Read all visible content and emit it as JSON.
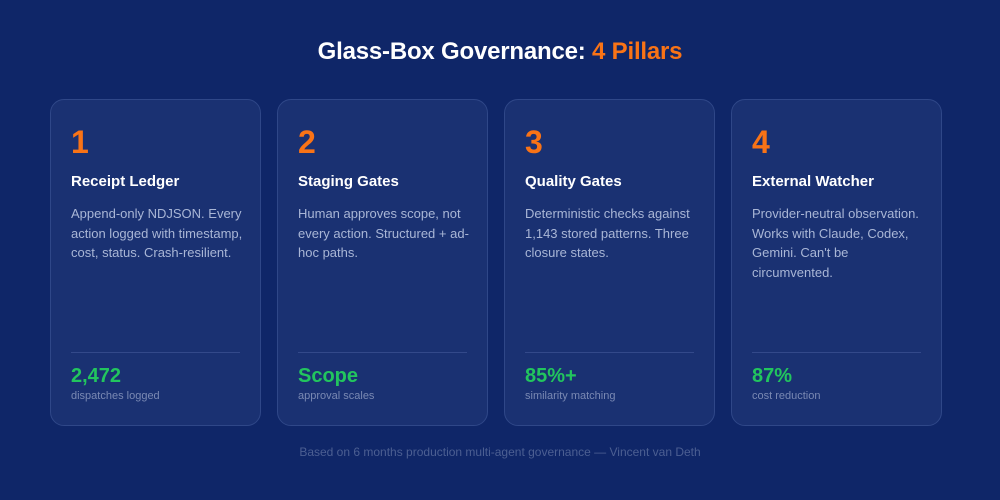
{
  "title": {
    "main": "Glass-Box Governance: ",
    "accent": "4 Pillars"
  },
  "pillars": [
    {
      "number": "1",
      "title": "Receipt Ledger",
      "description": "Append-only NDJSON. Every action logged with timestamp, cost, status. Crash-resilient.",
      "stat": "2,472",
      "stat_label": "dispatches logged"
    },
    {
      "number": "2",
      "title": "Staging Gates",
      "description": "Human approves scope, not every action. Structured + ad-hoc paths.",
      "stat": "Scope",
      "stat_label": "approval scales"
    },
    {
      "number": "3",
      "title": "Quality Gates",
      "description": "Deterministic checks against 1,143 stored patterns. Three closure states.",
      "stat": "85%+",
      "stat_label": "similarity matching"
    },
    {
      "number": "4",
      "title": "External Watcher",
      "description": "Provider-neutral observation. Works with Claude, Codex, Gemini. Can't be circumvented.",
      "stat": "87%",
      "stat_label": "cost reduction"
    }
  ],
  "footer": "Based on 6 months production multi-agent governance — Vincent van Deth",
  "colors": {
    "background": "#0f2668",
    "card": "#1a3172",
    "accent": "#f97316",
    "stat": "#22c55e"
  }
}
